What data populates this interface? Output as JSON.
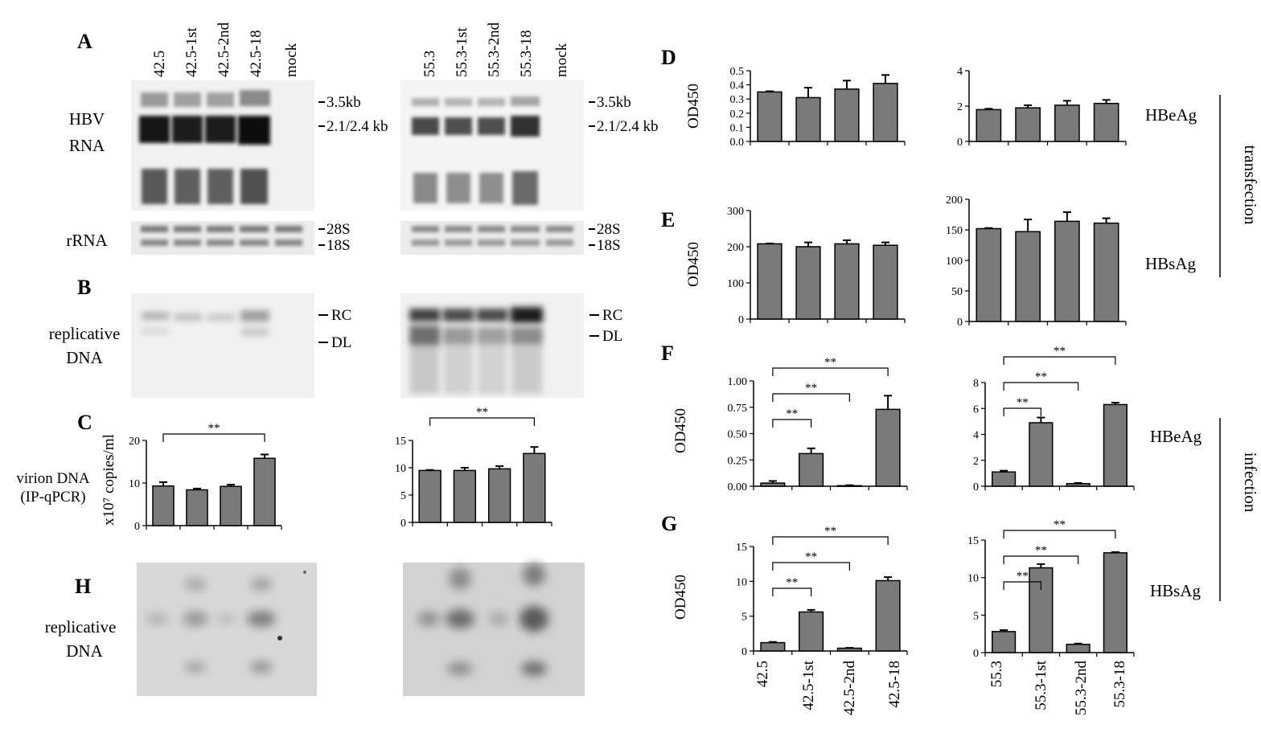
{
  "panel_labels": {
    "A": "A",
    "B": "B",
    "C": "C",
    "D": "D",
    "E": "E",
    "F": "F",
    "G": "G",
    "H": "H"
  },
  "lanes": {
    "left": [
      "42.5",
      "42.5-1st",
      "42.5-2nd",
      "42.5-18",
      "mock"
    ],
    "right": [
      "55.3",
      "55.3-1st",
      "55.3-2nd",
      "55.3-18",
      "mock"
    ]
  },
  "blot_markers": {
    "rna_3_5": "3.5kb",
    "rna_2": "2.1/2.4 kb",
    "s28": "28S",
    "s18": "18S",
    "rc": "RC",
    "dl": "DL"
  },
  "side_labels": {
    "hbv_line1": "HBV",
    "hbv_line2": "RNA",
    "rrna": "rRNA",
    "rep_line1": "replicative",
    "rep_line2": "DNA",
    "virion_line1": "virion DNA",
    "virion_line2": "(IP-qPCR)",
    "h_rep_line1": "replicative",
    "h_rep_line2": "DNA"
  },
  "antigen_labels": {
    "d_heag": "HBeAg",
    "e_hbsag": "HBsAg",
    "f_heag": "HBeAg",
    "g_hbsag": "HBsAg",
    "transfection": "transfection",
    "infection": "infection"
  },
  "y_labels": {
    "c": "x10⁷ copies/ml",
    "d": "OD450",
    "e": "OD450",
    "f": "OD450",
    "g": "OD450"
  },
  "sig": "**",
  "x_labels": {
    "left": [
      "42.5",
      "42.5-1st",
      "42.5-2nd",
      "42.5-18"
    ],
    "right": [
      "55.3",
      "55.3-1st",
      "55.3-2nd",
      "55.3-18"
    ]
  },
  "chart_data": [
    {
      "id": "C-left",
      "type": "bar",
      "categories": [
        "42.5",
        "42.5-1st",
        "42.5-2nd",
        "42.5-18"
      ],
      "values": [
        9.3,
        8.4,
        9.2,
        15.8
      ],
      "errors": [
        0.9,
        0.3,
        0.4,
        0.9
      ],
      "ylim": [
        0,
        20
      ],
      "yticks": [
        0,
        10,
        20
      ],
      "ylabel": "x10⁷ copies/ml",
      "significance": [
        [
          0,
          3
        ]
      ]
    },
    {
      "id": "C-right",
      "type": "bar",
      "categories": [
        "55.3",
        "55.3-1st",
        "55.3-2nd",
        "55.3-18"
      ],
      "values": [
        9.5,
        9.5,
        9.8,
        12.6
      ],
      "errors": [
        0.1,
        0.5,
        0.5,
        1.2
      ],
      "ylim": [
        0,
        15
      ],
      "yticks": [
        0,
        5,
        10,
        15
      ],
      "significance": [
        [
          0,
          3
        ]
      ]
    },
    {
      "id": "D-left",
      "type": "bar",
      "categories": [
        "42.5",
        "42.5-1st",
        "42.5-2nd",
        "42.5-18"
      ],
      "values": [
        0.35,
        0.31,
        0.37,
        0.41
      ],
      "errors": [
        0.005,
        0.07,
        0.06,
        0.06
      ],
      "ylim": [
        0,
        0.5
      ],
      "yticks": [
        0,
        0.1,
        0.2,
        0.3,
        0.4,
        0.5
      ],
      "ylabel": "OD450"
    },
    {
      "id": "D-right",
      "type": "bar",
      "categories": [
        "55.3",
        "55.3-1st",
        "55.3-2nd",
        "55.3-18"
      ],
      "values": [
        1.8,
        1.9,
        2.05,
        2.15
      ],
      "errors": [
        0.05,
        0.15,
        0.25,
        0.2
      ],
      "ylim": [
        0,
        4
      ],
      "yticks": [
        0,
        2,
        4
      ]
    },
    {
      "id": "E-left",
      "type": "bar",
      "categories": [
        "42.5",
        "42.5-1st",
        "42.5-2nd",
        "42.5-18"
      ],
      "values": [
        208,
        200,
        208,
        204
      ],
      "errors": [
        1,
        12,
        10,
        8
      ],
      "ylim": [
        0,
        300
      ],
      "yticks": [
        0,
        100,
        200,
        300
      ],
      "ylabel": "OD450"
    },
    {
      "id": "E-right",
      "type": "bar",
      "categories": [
        "55.3",
        "55.3-1st",
        "55.3-2nd",
        "55.3-18"
      ],
      "values": [
        152,
        147,
        164,
        161
      ],
      "errors": [
        1,
        20,
        15,
        8
      ],
      "ylim": [
        0,
        200
      ],
      "yticks": [
        0,
        50,
        100,
        150,
        200
      ]
    },
    {
      "id": "F-left",
      "type": "bar",
      "categories": [
        "42.5",
        "42.5-1st",
        "42.5-2nd",
        "42.5-18"
      ],
      "values": [
        0.03,
        0.31,
        0.005,
        0.73
      ],
      "errors": [
        0.02,
        0.05,
        0.005,
        0.13
      ],
      "ylim": [
        0,
        1
      ],
      "yticks": [
        0,
        0.25,
        0.5,
        0.75,
        1
      ],
      "ylabel": "OD450",
      "significance": [
        [
          0,
          1
        ],
        [
          0,
          2
        ],
        [
          0,
          3
        ]
      ]
    },
    {
      "id": "F-right",
      "type": "bar",
      "categories": [
        "55.3",
        "55.3-1st",
        "55.3-2nd",
        "55.3-18"
      ],
      "values": [
        1.1,
        4.9,
        0.2,
        6.3
      ],
      "errors": [
        0.1,
        0.4,
        0.05,
        0.15
      ],
      "ylim": [
        0,
        8
      ],
      "yticks": [
        0,
        2,
        4,
        6,
        8
      ],
      "significance": [
        [
          0,
          1
        ],
        [
          0,
          2
        ],
        [
          0,
          3
        ]
      ]
    },
    {
      "id": "G-left",
      "type": "bar",
      "categories": [
        "42.5",
        "42.5-1st",
        "42.5-2nd",
        "42.5-18"
      ],
      "values": [
        1.2,
        5.6,
        0.4,
        10.1
      ],
      "errors": [
        0.1,
        0.3,
        0.05,
        0.5
      ],
      "ylim": [
        0,
        15
      ],
      "yticks": [
        0,
        5,
        10,
        15
      ],
      "ylabel": "OD450",
      "significance": [
        [
          0,
          1
        ],
        [
          0,
          2
        ],
        [
          0,
          3
        ]
      ]
    },
    {
      "id": "G-right",
      "type": "bar",
      "categories": [
        "55.3",
        "55.3-1st",
        "55.3-2nd",
        "55.3-18"
      ],
      "values": [
        2.8,
        11.3,
        1.1,
        13.3
      ],
      "errors": [
        0.2,
        0.5,
        0.1,
        0.1
      ],
      "ylim": [
        0,
        15
      ],
      "yticks": [
        0,
        5,
        10,
        15
      ],
      "significance": [
        [
          0,
          1
        ],
        [
          0,
          2
        ],
        [
          0,
          3
        ]
      ]
    }
  ]
}
